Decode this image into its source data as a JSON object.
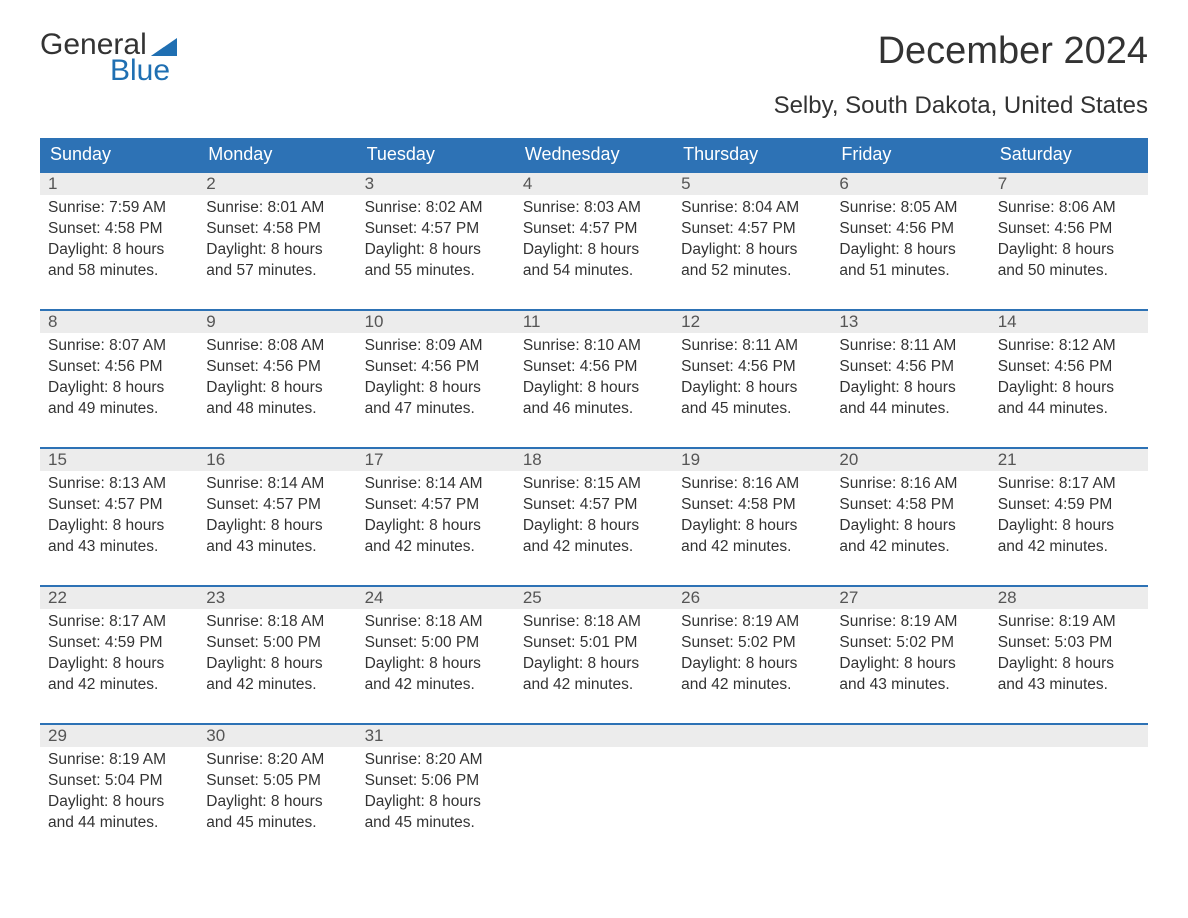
{
  "logo": {
    "word1": "General",
    "word2": "Blue",
    "flag_color": "#1f6fb2"
  },
  "title": "December 2024",
  "subtitle": "Selby, South Dakota, United States",
  "colors": {
    "header_bg": "#2d72b5",
    "header_text": "#ffffff",
    "daynum_bg": "#ececec",
    "week_border": "#2d72b5",
    "body_text": "#333333",
    "logo_blue": "#1f6fb2"
  },
  "day_names": [
    "Sunday",
    "Monday",
    "Tuesday",
    "Wednesday",
    "Thursday",
    "Friday",
    "Saturday"
  ],
  "weeks": [
    [
      {
        "n": "1",
        "sr": "Sunrise: 7:59 AM",
        "ss": "Sunset: 4:58 PM",
        "d1": "Daylight: 8 hours",
        "d2": "and 58 minutes."
      },
      {
        "n": "2",
        "sr": "Sunrise: 8:01 AM",
        "ss": "Sunset: 4:58 PM",
        "d1": "Daylight: 8 hours",
        "d2": "and 57 minutes."
      },
      {
        "n": "3",
        "sr": "Sunrise: 8:02 AM",
        "ss": "Sunset: 4:57 PM",
        "d1": "Daylight: 8 hours",
        "d2": "and 55 minutes."
      },
      {
        "n": "4",
        "sr": "Sunrise: 8:03 AM",
        "ss": "Sunset: 4:57 PM",
        "d1": "Daylight: 8 hours",
        "d2": "and 54 minutes."
      },
      {
        "n": "5",
        "sr": "Sunrise: 8:04 AM",
        "ss": "Sunset: 4:57 PM",
        "d1": "Daylight: 8 hours",
        "d2": "and 52 minutes."
      },
      {
        "n": "6",
        "sr": "Sunrise: 8:05 AM",
        "ss": "Sunset: 4:56 PM",
        "d1": "Daylight: 8 hours",
        "d2": "and 51 minutes."
      },
      {
        "n": "7",
        "sr": "Sunrise: 8:06 AM",
        "ss": "Sunset: 4:56 PM",
        "d1": "Daylight: 8 hours",
        "d2": "and 50 minutes."
      }
    ],
    [
      {
        "n": "8",
        "sr": "Sunrise: 8:07 AM",
        "ss": "Sunset: 4:56 PM",
        "d1": "Daylight: 8 hours",
        "d2": "and 49 minutes."
      },
      {
        "n": "9",
        "sr": "Sunrise: 8:08 AM",
        "ss": "Sunset: 4:56 PM",
        "d1": "Daylight: 8 hours",
        "d2": "and 48 minutes."
      },
      {
        "n": "10",
        "sr": "Sunrise: 8:09 AM",
        "ss": "Sunset: 4:56 PM",
        "d1": "Daylight: 8 hours",
        "d2": "and 47 minutes."
      },
      {
        "n": "11",
        "sr": "Sunrise: 8:10 AM",
        "ss": "Sunset: 4:56 PM",
        "d1": "Daylight: 8 hours",
        "d2": "and 46 minutes."
      },
      {
        "n": "12",
        "sr": "Sunrise: 8:11 AM",
        "ss": "Sunset: 4:56 PM",
        "d1": "Daylight: 8 hours",
        "d2": "and 45 minutes."
      },
      {
        "n": "13",
        "sr": "Sunrise: 8:11 AM",
        "ss": "Sunset: 4:56 PM",
        "d1": "Daylight: 8 hours",
        "d2": "and 44 minutes."
      },
      {
        "n": "14",
        "sr": "Sunrise: 8:12 AM",
        "ss": "Sunset: 4:56 PM",
        "d1": "Daylight: 8 hours",
        "d2": "and 44 minutes."
      }
    ],
    [
      {
        "n": "15",
        "sr": "Sunrise: 8:13 AM",
        "ss": "Sunset: 4:57 PM",
        "d1": "Daylight: 8 hours",
        "d2": "and 43 minutes."
      },
      {
        "n": "16",
        "sr": "Sunrise: 8:14 AM",
        "ss": "Sunset: 4:57 PM",
        "d1": "Daylight: 8 hours",
        "d2": "and 43 minutes."
      },
      {
        "n": "17",
        "sr": "Sunrise: 8:14 AM",
        "ss": "Sunset: 4:57 PM",
        "d1": "Daylight: 8 hours",
        "d2": "and 42 minutes."
      },
      {
        "n": "18",
        "sr": "Sunrise: 8:15 AM",
        "ss": "Sunset: 4:57 PM",
        "d1": "Daylight: 8 hours",
        "d2": "and 42 minutes."
      },
      {
        "n": "19",
        "sr": "Sunrise: 8:16 AM",
        "ss": "Sunset: 4:58 PM",
        "d1": "Daylight: 8 hours",
        "d2": "and 42 minutes."
      },
      {
        "n": "20",
        "sr": "Sunrise: 8:16 AM",
        "ss": "Sunset: 4:58 PM",
        "d1": "Daylight: 8 hours",
        "d2": "and 42 minutes."
      },
      {
        "n": "21",
        "sr": "Sunrise: 8:17 AM",
        "ss": "Sunset: 4:59 PM",
        "d1": "Daylight: 8 hours",
        "d2": "and 42 minutes."
      }
    ],
    [
      {
        "n": "22",
        "sr": "Sunrise: 8:17 AM",
        "ss": "Sunset: 4:59 PM",
        "d1": "Daylight: 8 hours",
        "d2": "and 42 minutes."
      },
      {
        "n": "23",
        "sr": "Sunrise: 8:18 AM",
        "ss": "Sunset: 5:00 PM",
        "d1": "Daylight: 8 hours",
        "d2": "and 42 minutes."
      },
      {
        "n": "24",
        "sr": "Sunrise: 8:18 AM",
        "ss": "Sunset: 5:00 PM",
        "d1": "Daylight: 8 hours",
        "d2": "and 42 minutes."
      },
      {
        "n": "25",
        "sr": "Sunrise: 8:18 AM",
        "ss": "Sunset: 5:01 PM",
        "d1": "Daylight: 8 hours",
        "d2": "and 42 minutes."
      },
      {
        "n": "26",
        "sr": "Sunrise: 8:19 AM",
        "ss": "Sunset: 5:02 PM",
        "d1": "Daylight: 8 hours",
        "d2": "and 42 minutes."
      },
      {
        "n": "27",
        "sr": "Sunrise: 8:19 AM",
        "ss": "Sunset: 5:02 PM",
        "d1": "Daylight: 8 hours",
        "d2": "and 43 minutes."
      },
      {
        "n": "28",
        "sr": "Sunrise: 8:19 AM",
        "ss": "Sunset: 5:03 PM",
        "d1": "Daylight: 8 hours",
        "d2": "and 43 minutes."
      }
    ],
    [
      {
        "n": "29",
        "sr": "Sunrise: 8:19 AM",
        "ss": "Sunset: 5:04 PM",
        "d1": "Daylight: 8 hours",
        "d2": "and 44 minutes."
      },
      {
        "n": "30",
        "sr": "Sunrise: 8:20 AM",
        "ss": "Sunset: 5:05 PM",
        "d1": "Daylight: 8 hours",
        "d2": "and 45 minutes."
      },
      {
        "n": "31",
        "sr": "Sunrise: 8:20 AM",
        "ss": "Sunset: 5:06 PM",
        "d1": "Daylight: 8 hours",
        "d2": "and 45 minutes."
      },
      {
        "empty": true
      },
      {
        "empty": true
      },
      {
        "empty": true
      },
      {
        "empty": true
      }
    ]
  ]
}
